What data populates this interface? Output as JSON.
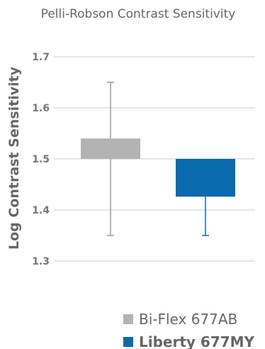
{
  "chart_data": {
    "type": "bar",
    "title": "Pelli-Robson Contrast Sensitivity",
    "ylabel": "Log Contrast Sensitivity",
    "ylim": [
      1.3,
      1.7
    ],
    "yticks": [
      "1.3",
      "1.4",
      "1.5",
      "1.6",
      "1.7"
    ],
    "baseline": 1.5,
    "grid": true,
    "legend_position": "bottom-right",
    "series": [
      {
        "name": "Bi-Flex 677AB",
        "value": 1.54,
        "error_low": 1.35,
        "error_high": 1.65,
        "color": "#b3b3b3",
        "bold": false
      },
      {
        "name": "Liberty 677MY",
        "value": 1.426,
        "error_low": 1.35,
        "error_high": null,
        "color": "#0a6aad",
        "bold": true
      }
    ]
  }
}
